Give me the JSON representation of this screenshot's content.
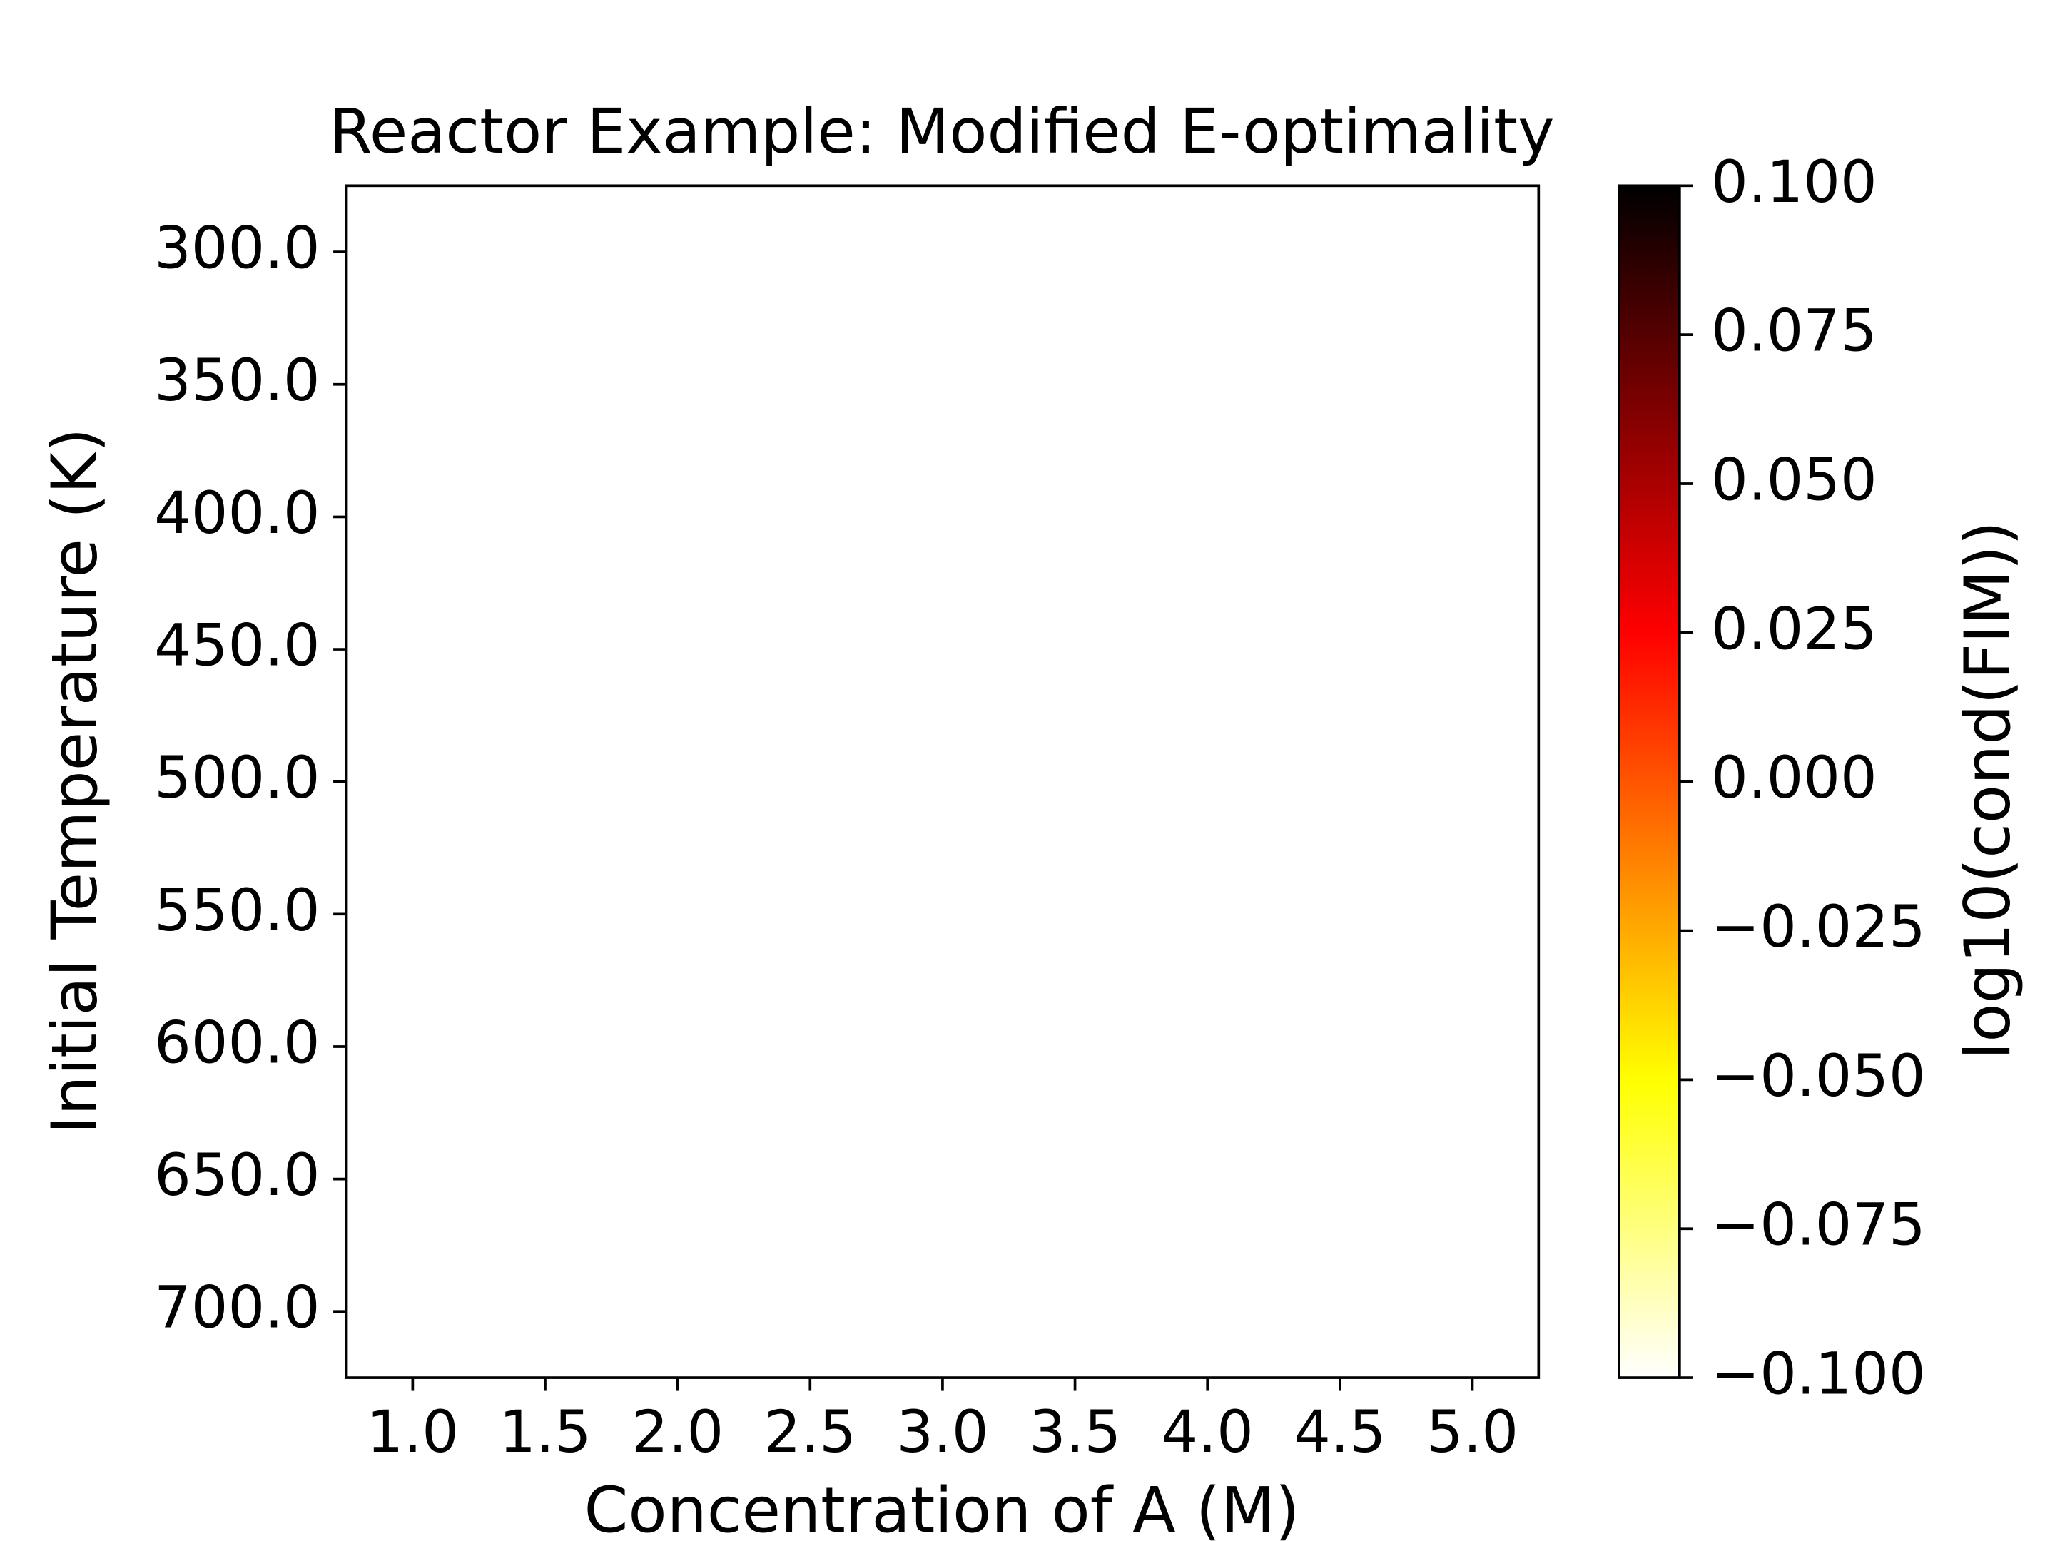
{
  "chart_data": {
    "type": "heatmap",
    "title": "Reactor Example: Modified E-optimality",
    "x_label": "Concentration of A (M)",
    "y_label": "Initial Temperature (K)",
    "xlim": [
      0.75,
      5.25
    ],
    "xticks": [
      {
        "value": 1,
        "label": "1.0"
      },
      {
        "value": 1.5,
        "label": "1.5"
      },
      {
        "value": 2,
        "label": "2.0"
      },
      {
        "value": 2.5,
        "label": "2.5"
      },
      {
        "value": 3,
        "label": "3.0"
      },
      {
        "value": 3.5,
        "label": "3.5"
      },
      {
        "value": 4,
        "label": "4.0"
      },
      {
        "value": 4.5,
        "label": "4.5"
      },
      {
        "value": 5,
        "label": "5.0"
      }
    ],
    "ylim": [
      725,
      275
    ],
    "yticks": [
      {
        "value": 300,
        "label": "300.0"
      },
      {
        "value": 350,
        "label": "350.0"
      },
      {
        "value": 400,
        "label": "400.0"
      },
      {
        "value": 450,
        "label": "450.0"
      },
      {
        "value": 500,
        "label": "500.0"
      },
      {
        "value": 550,
        "label": "550.0"
      },
      {
        "value": 600,
        "label": "600.0"
      },
      {
        "value": 650,
        "label": "650.0"
      },
      {
        "value": 700,
        "label": "700.0"
      }
    ],
    "colorbar": {
      "label": "log10(cond(FIM))",
      "clim": [
        -0.1,
        0.1
      ],
      "ticks": [
        {
          "value": 0.1,
          "label": "0.100"
        },
        {
          "value": 0.075,
          "label": "0.075"
        },
        {
          "value": 0.05,
          "label": "0.050"
        },
        {
          "value": 0.025,
          "label": "0.025"
        },
        {
          "value": 0,
          "label": "0.000"
        },
        {
          "value": -0.025,
          "label": "−0.025"
        },
        {
          "value": -0.05,
          "label": "−0.050"
        },
        {
          "value": -0.075,
          "label": "−0.075"
        },
        {
          "value": -0.1,
          "label": "−0.100"
        }
      ],
      "colormap": [
        {
          "pos": 0,
          "color": "#ffffff"
        },
        {
          "pos": 0.25,
          "color": "#ffff00"
        },
        {
          "pos": 0.625,
          "color": "#ff0000"
        },
        {
          "pos": 1,
          "color": "#000000"
        }
      ]
    }
  }
}
